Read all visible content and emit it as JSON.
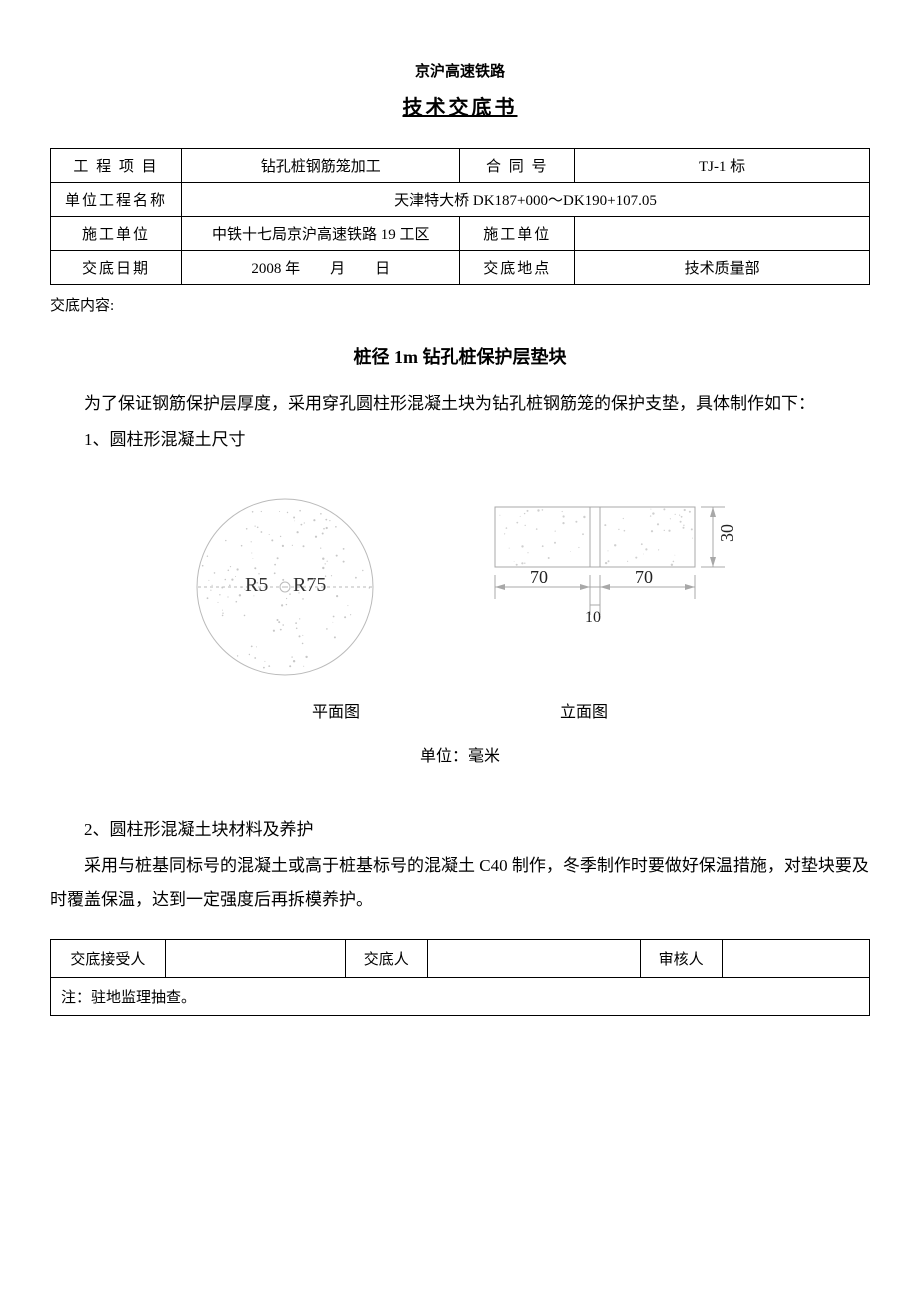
{
  "header": {
    "small": "京沪高速铁路",
    "title": "技术交底书"
  },
  "info": {
    "labels": {
      "project": "工 程 项 目",
      "contract": "合 同 号",
      "unitProjectName": "单位工程名称",
      "constructionUnit": "施工单位",
      "constructionUnit2": "施工单位",
      "date": "交底日期",
      "place": "交底地点"
    },
    "values": {
      "project": "钻孔桩钢筋笼加工",
      "contract": "TJ-1 标",
      "unitProjectName": "天津特大桥 DK187+000～DK190+107.05",
      "constructionUnit": "中铁十七局京沪高速铁路 19 工区",
      "constructionUnit2": "",
      "date": "2008 年　　月　　日",
      "place": "技术质量部"
    }
  },
  "content": {
    "heading": "交底内容:",
    "sectionTitle": "桩径 1m 钻孔桩保护层垫块",
    "para1": "为了保证钢筋保护层厚度，采用穿孔圆柱形混凝土块为钻孔桩钢筋笼的保护支垫，具体制作如下：",
    "item1": "1、圆柱形混凝土尺寸",
    "item2": "2、圆柱形混凝土块材料及养护",
    "para2": "采用与桩基同标号的混凝土或高于桩基标号的混凝土 C40 制作，冬季制作时要做好保温措施，对垫块要及时覆盖保温，达到一定强度后再拆模养护。"
  },
  "diagram": {
    "plan": {
      "caption": "平面图",
      "r_inner_label": "R5",
      "r_outer_label": "R75",
      "circle_color": "#bababa",
      "text_color": "#333333",
      "dot_color": "#c7c7c7"
    },
    "elevation": {
      "caption": "立面图",
      "dim_left": "70",
      "dim_right": "70",
      "dim_center": "10",
      "dim_height": "30",
      "line_color": "#a8a8a8",
      "text_color": "#222222",
      "dot_color": "#cfcfcf"
    },
    "unit": "单位：毫米"
  },
  "signoff": {
    "receiver": "交底接受人",
    "disclosurePerson": "交底人",
    "reviewer": "审核人",
    "note": "注：驻地监理抽查。"
  }
}
